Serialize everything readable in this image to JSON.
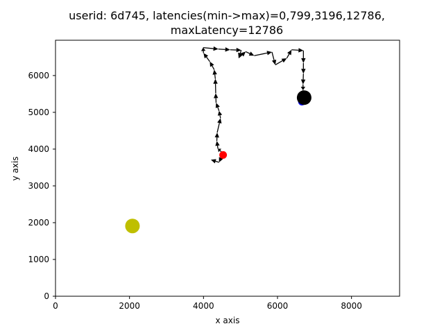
{
  "chart_data": {
    "type": "scatter",
    "title_line1": "userid: 6d745, latencies(min->max)=0,799,3196,12786,",
    "title_line2": "maxLatency=12786",
    "xlabel": "x axis",
    "ylabel": "y axis",
    "xlim": [
      0,
      9300
    ],
    "ylim": [
      6960,
      0
    ],
    "y_inverted": true,
    "xticks": [
      0,
      2000,
      4000,
      6000,
      8000
    ],
    "yticks": [
      0,
      1000,
      2000,
      3000,
      4000,
      5000,
      6000
    ],
    "grid": false,
    "path": [
      [
        4510,
        3840
      ],
      [
        4480,
        3930
      ],
      [
        4390,
        4010
      ],
      [
        4360,
        4220
      ],
      [
        4370,
        4450
      ],
      [
        4460,
        4840
      ],
      [
        4420,
        5040
      ],
      [
        4340,
        5260
      ],
      [
        4330,
        5520
      ],
      [
        4320,
        5910
      ],
      [
        4290,
        6160
      ],
      [
        4170,
        6380
      ],
      [
        4000,
        6610
      ],
      [
        3990,
        6760
      ],
      [
        4400,
        6720
      ],
      [
        4720,
        6700
      ],
      [
        5020,
        6690
      ],
      [
        4950,
        6480
      ],
      [
        5140,
        6650
      ],
      [
        5370,
        6540
      ],
      [
        5850,
        6640
      ],
      [
        5940,
        6290
      ],
      [
        6250,
        6470
      ],
      [
        6380,
        6700
      ],
      [
        6700,
        6680
      ],
      [
        6700,
        6340
      ],
      [
        6700,
        6050
      ],
      [
        6690,
        5760
      ],
      [
        6690,
        5600
      ],
      [
        6660,
        5290
      ]
    ],
    "path_color": "#000000",
    "detour": {
      "from": [
        4510,
        3840
      ],
      "to": [
        4200,
        3710
      ],
      "via": [
        4420,
        3640
      ]
    },
    "markers": [
      {
        "x": 2080,
        "y": 1910,
        "color": "#bfbf00",
        "size": "large"
      },
      {
        "x": 4530,
        "y": 3840,
        "color": "#ff0000",
        "size": "small"
      },
      {
        "x": 6660,
        "y": 5290,
        "color": "#0000ff",
        "size": "small"
      },
      {
        "x": 6720,
        "y": 5400,
        "color": "#000000",
        "size": "large"
      }
    ]
  }
}
